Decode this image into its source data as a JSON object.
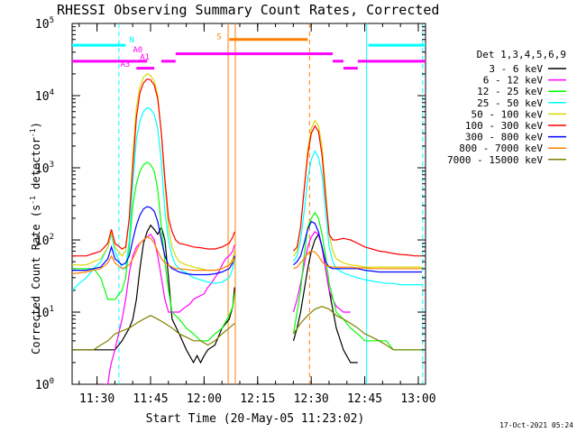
{
  "chart_data": {
    "type": "line",
    "title": "RHESSI Observing Summary Count Rates, Corrected",
    "xlabel": "Start Time (20-May-05 11:23:02)",
    "ylabel_parts": {
      "pre": "Corrected Count Rate (s",
      "sup1": "-1",
      "mid": " detector",
      "sup2": "-1",
      "post": ")"
    },
    "x_unit": "minutes since 11:23:02",
    "xlim": [
      0,
      99
    ],
    "ylim": [
      1,
      100000
    ],
    "yscale": "log",
    "x_ticks": [
      {
        "x": 6.97,
        "label": "11:30"
      },
      {
        "x": 21.97,
        "label": "11:45"
      },
      {
        "x": 36.97,
        "label": "12:00"
      },
      {
        "x": 51.97,
        "label": "12:15"
      },
      {
        "x": 66.97,
        "label": "12:30"
      },
      {
        "x": 81.97,
        "label": "12:45"
      },
      {
        "x": 96.97,
        "label": "13:00"
      }
    ],
    "y_ticks": [
      {
        "v": 1,
        "base": "10",
        "exp": "0"
      },
      {
        "v": 10,
        "base": "10",
        "exp": "1"
      },
      {
        "v": 100,
        "base": "10",
        "exp": "2"
      },
      {
        "v": 1000,
        "base": "10",
        "exp": "3"
      },
      {
        "v": 10000,
        "base": "10",
        "exp": "4"
      },
      {
        "v": 100000,
        "base": "10",
        "exp": "5"
      }
    ],
    "legend_title": "Det 1,3,4,5,6,9",
    "legend_position": "right",
    "series": [
      {
        "name": "3 - 6 keV",
        "color": "#000000",
        "x": [
          0,
          8,
          12,
          14,
          16,
          17,
          18,
          19,
          20,
          21,
          22,
          23,
          24,
          25,
          26,
          27,
          28,
          30,
          32,
          34,
          35,
          36,
          37,
          38,
          40,
          42,
          44,
          45,
          45.5
        ],
        "y": [
          3,
          3,
          3,
          4,
          6,
          8,
          15,
          40,
          90,
          130,
          160,
          140,
          120,
          150,
          100,
          30,
          8,
          5,
          3,
          2,
          2.5,
          2,
          2.5,
          3,
          3.5,
          6,
          8,
          12,
          22
        ]
      },
      {
        "name": "3 - 6 keV",
        "color": "#000000",
        "x": [
          62,
          63,
          64,
          65,
          66,
          67,
          68,
          69,
          70,
          71,
          72,
          74,
          76,
          78,
          80
        ],
        "y": [
          4,
          6,
          10,
          20,
          40,
          70,
          100,
          120,
          80,
          40,
          20,
          6,
          3,
          2,
          2
        ]
      },
      {
        "name": "6 - 12 keV",
        "color": "#ff00ff",
        "x": [
          9,
          10,
          10.5,
          11,
          12,
          13,
          14,
          15,
          16,
          17,
          18,
          19,
          20,
          21,
          22,
          23,
          24,
          25,
          26,
          27,
          28,
          29,
          30,
          31,
          32,
          33,
          34,
          35,
          36,
          37,
          38,
          39,
          40,
          41,
          42,
          43,
          44,
          45,
          45.5
        ],
        "y": [
          1,
          1,
          1.5,
          2,
          3,
          5,
          8,
          15,
          35,
          60,
          80,
          90,
          100,
          110,
          120,
          100,
          60,
          30,
          15,
          10,
          10,
          10,
          10,
          11,
          12,
          13,
          15,
          16,
          17,
          18,
          22,
          25,
          30,
          35,
          45,
          55,
          60,
          70,
          85
        ]
      },
      {
        "name": "6 - 12 keV",
        "color": "#ff00ff",
        "x": [
          62,
          63,
          64,
          65,
          66,
          67,
          68,
          69,
          70,
          71,
          72,
          73,
          74,
          75,
          76,
          77,
          78
        ],
        "y": [
          10,
          15,
          25,
          45,
          80,
          110,
          130,
          120,
          80,
          40,
          20,
          15,
          12,
          11,
          10,
          10,
          10
        ]
      },
      {
        "name": "12 - 25 keV",
        "color": "#00ff00",
        "x": [
          0,
          4,
          6,
          8,
          10,
          12,
          14,
          15,
          16,
          17,
          18,
          19,
          20,
          21,
          22,
          23,
          24,
          25,
          26,
          27,
          28,
          30,
          32,
          34,
          36,
          38,
          40,
          42,
          44,
          45,
          45.5
        ],
        "y": [
          40,
          40,
          40,
          30,
          15,
          15,
          20,
          30,
          80,
          300,
          600,
          900,
          1100,
          1200,
          1100,
          900,
          500,
          150,
          50,
          20,
          10,
          8,
          6,
          5,
          4,
          4,
          5,
          6,
          9,
          12,
          18
        ]
      },
      {
        "name": "12 - 25 keV",
        "color": "#00ff00",
        "x": [
          62,
          63,
          64,
          65,
          66,
          67,
          68,
          69,
          70,
          71,
          72,
          74,
          76,
          78,
          80,
          82,
          84,
          86,
          88,
          90,
          92,
          94,
          96,
          98
        ],
        "y": [
          5,
          10,
          20,
          60,
          150,
          200,
          240,
          200,
          120,
          60,
          25,
          10,
          8,
          6,
          5,
          4,
          4,
          4,
          4,
          3,
          3,
          3,
          3,
          3
        ]
      },
      {
        "name": "25 - 50 keV",
        "color": "#00ffff",
        "x": [
          0,
          2,
          4,
          6,
          8,
          10,
          11,
          12,
          14,
          15,
          16,
          17,
          18,
          19,
          20,
          21,
          22,
          23,
          24,
          25,
          26,
          27,
          28,
          29,
          30,
          32,
          34,
          36,
          38,
          40,
          42,
          44,
          45,
          45.5
        ],
        "y": [
          20,
          25,
          30,
          40,
          50,
          80,
          120,
          70,
          40,
          40,
          100,
          600,
          2500,
          4500,
          6000,
          6800,
          6500,
          5500,
          3500,
          1200,
          250,
          100,
          60,
          45,
          40,
          35,
          30,
          28,
          26,
          25,
          26,
          30,
          40,
          55
        ]
      },
      {
        "name": "25 - 50 keV",
        "color": "#00ffff",
        "x": [
          62,
          63,
          64,
          65,
          66,
          67,
          68,
          69,
          70,
          71,
          72,
          73,
          74,
          76,
          78,
          80,
          82,
          84,
          86,
          88,
          90,
          92,
          94,
          96,
          98
        ],
        "y": [
          50,
          60,
          100,
          250,
          700,
          1300,
          1700,
          1400,
          800,
          250,
          80,
          50,
          40,
          35,
          32,
          30,
          28,
          27,
          26,
          25,
          25,
          24,
          24,
          24,
          24
        ]
      },
      {
        "name": "50 - 100 keV",
        "color": "#d8d800",
        "x": [
          0,
          4,
          6,
          8,
          10,
          11,
          12,
          14,
          15,
          16,
          17,
          18,
          19,
          20,
          21,
          22,
          23,
          24,
          25,
          26,
          27,
          28,
          29,
          30,
          32,
          34,
          36,
          38,
          40,
          42,
          44,
          45,
          45.5
        ],
        "y": [
          45,
          45,
          50,
          55,
          80,
          130,
          80,
          60,
          70,
          200,
          1500,
          7000,
          13000,
          18000,
          20000,
          19000,
          16000,
          10000,
          3000,
          600,
          150,
          80,
          60,
          50,
          45,
          42,
          40,
          38,
          38,
          40,
          45,
          55,
          70
        ]
      },
      {
        "name": "50 - 100 keV",
        "color": "#d8d800",
        "x": [
          62,
          63,
          64,
          65,
          66,
          67,
          68,
          69,
          70,
          71,
          72,
          73,
          74,
          76,
          78,
          80,
          82,
          84,
          86,
          88,
          90,
          92,
          94,
          96,
          98
        ],
        "y": [
          60,
          70,
          150,
          500,
          1800,
          3500,
          4500,
          3800,
          2000,
          500,
          120,
          70,
          55,
          48,
          45,
          44,
          42,
          42,
          42,
          42,
          42,
          42,
          42,
          42,
          42
        ]
      },
      {
        "name": "100 - 300 keV",
        "color": "#ff0000",
        "x": [
          0,
          4,
          6,
          8,
          10,
          11,
          12,
          14,
          15,
          16,
          17,
          18,
          19,
          20,
          21,
          22,
          23,
          24,
          25,
          26,
          27,
          28,
          29,
          30,
          32,
          34,
          36,
          38,
          40,
          42,
          44,
          45,
          45.5
        ],
        "y": [
          60,
          60,
          65,
          70,
          90,
          140,
          90,
          75,
          80,
          200,
          1000,
          5000,
          11000,
          15000,
          17000,
          16500,
          14000,
          9000,
          3000,
          700,
          200,
          130,
          100,
          90,
          85,
          80,
          78,
          75,
          75,
          80,
          90,
          110,
          130
        ]
      },
      {
        "name": "100 - 300 keV",
        "color": "#ff0000",
        "x": [
          62,
          63,
          64,
          65,
          66,
          67,
          68,
          69,
          70,
          71,
          72,
          73,
          74,
          76,
          78,
          80,
          82,
          84,
          86,
          88,
          90,
          92,
          94,
          96,
          98
        ],
        "y": [
          70,
          80,
          150,
          500,
          1500,
          3000,
          3800,
          3200,
          1500,
          400,
          120,
          100,
          100,
          105,
          100,
          90,
          80,
          75,
          70,
          68,
          65,
          63,
          62,
          60,
          60
        ]
      },
      {
        "name": "300 - 800 keV",
        "color": "#0000ff",
        "x": [
          0,
          4,
          6,
          8,
          10,
          11,
          12,
          14,
          15,
          16,
          17,
          18,
          19,
          20,
          21,
          22,
          23,
          24,
          25,
          26,
          27,
          28,
          29,
          30,
          32,
          34,
          36,
          38,
          40,
          42,
          44,
          45,
          45.5
        ],
        "y": [
          38,
          38,
          40,
          42,
          55,
          80,
          55,
          45,
          48,
          60,
          100,
          160,
          220,
          270,
          290,
          280,
          250,
          180,
          100,
          60,
          45,
          40,
          38,
          36,
          34,
          33,
          33,
          33,
          34,
          36,
          40,
          48,
          60
        ]
      },
      {
        "name": "300 - 800 keV",
        "color": "#0000ff",
        "x": [
          62,
          63,
          64,
          65,
          66,
          67,
          68,
          69,
          70,
          71,
          72,
          73,
          74,
          76,
          78,
          80,
          82,
          84,
          86,
          88,
          90,
          92,
          94,
          96,
          98
        ],
        "y": [
          45,
          50,
          60,
          90,
          140,
          180,
          170,
          130,
          80,
          50,
          42,
          40,
          40,
          40,
          40,
          40,
          38,
          37,
          36,
          36,
          36,
          36,
          36,
          36,
          36
        ]
      },
      {
        "name": "800 - 7000 keV",
        "color": "#ff8000",
        "x": [
          0,
          4,
          6,
          8,
          10,
          11,
          12,
          14,
          15,
          16,
          17,
          18,
          19,
          20,
          21,
          22,
          23,
          24,
          25,
          26,
          27,
          28,
          29,
          30,
          32,
          34,
          36,
          38,
          40,
          42,
          44,
          45,
          45.5
        ],
        "y": [
          34,
          36,
          38,
          40,
          48,
          60,
          48,
          40,
          42,
          45,
          55,
          70,
          90,
          100,
          110,
          105,
          90,
          70,
          55,
          48,
          45,
          42,
          40,
          40,
          39,
          38,
          38,
          38,
          38,
          40,
          45,
          50,
          55
        ]
      },
      {
        "name": "800 - 7000 keV",
        "color": "#ff8000",
        "x": [
          62,
          63,
          64,
          65,
          66,
          67,
          68,
          69,
          70,
          71,
          72,
          73,
          74,
          76,
          78,
          80,
          82,
          84,
          86,
          88,
          90,
          92,
          94,
          96,
          98
        ],
        "y": [
          40,
          42,
          48,
          55,
          65,
          70,
          68,
          60,
          50,
          45,
          43,
          42,
          42,
          42,
          42,
          41,
          41,
          40,
          40,
          40,
          40,
          40,
          40,
          40,
          40
        ]
      },
      {
        "name": "7000 - 15000 keV",
        "color": "#808000",
        "x": [
          0,
          4,
          6,
          8,
          10,
          12,
          14,
          16,
          18,
          20,
          22,
          24,
          26,
          28,
          30,
          32,
          34,
          36,
          38,
          40,
          42,
          44,
          45.5
        ],
        "y": [
          3,
          3,
          3,
          3.5,
          4,
          5,
          5.5,
          6,
          7,
          8,
          9,
          8,
          7,
          6,
          5,
          4.5,
          4,
          4,
          3.5,
          4,
          5,
          6,
          7
        ]
      },
      {
        "name": "7000 - 15000 keV",
        "color": "#808000",
        "x": [
          62,
          64,
          66,
          68,
          70,
          72,
          74,
          76,
          78,
          80,
          82,
          84,
          86,
          88,
          90,
          92,
          94,
          96,
          98
        ],
        "y": [
          5,
          7,
          9,
          11,
          12,
          11,
          9,
          8,
          7,
          6,
          5,
          4.5,
          4,
          3.5,
          3,
          3,
          3,
          3,
          3
        ]
      }
    ],
    "state_bars": [
      {
        "label": "N",
        "color": "#00ffff",
        "value": 50000,
        "segments": [
          [
            0,
            15
          ],
          [
            83,
            99
          ]
        ]
      },
      {
        "label": "S",
        "color": "#ff8000",
        "value": 60000,
        "segments": [
          [
            44,
            66
          ]
        ]
      },
      {
        "label": "A0",
        "color": "#ff00ff",
        "value": 38000,
        "segments": [
          [
            29,
            73
          ]
        ]
      },
      {
        "label": "A1",
        "color": "#ff00ff",
        "value": 30000,
        "segments": [
          [
            0,
            18
          ],
          [
            18,
            21
          ],
          [
            25,
            29
          ],
          [
            73,
            76
          ],
          [
            80,
            99
          ]
        ]
      },
      {
        "label": "A3",
        "color": "#ff00ff",
        "value": 24000,
        "segments": [
          [
            18,
            23
          ],
          [
            76,
            80
          ]
        ]
      }
    ],
    "state_labels": [
      {
        "text": "N",
        "color": "#00ffff",
        "x": 16,
        "value": 55000
      },
      {
        "text": "S",
        "color": "#ff8000",
        "x": 40.5,
        "value": 60000
      },
      {
        "text": "A0",
        "color": "#ff00ff",
        "x": 17,
        "value": 40000
      },
      {
        "text": "A1",
        "color": "#ff00ff",
        "x": 19,
        "value": 31500
      },
      {
        "text": "A3",
        "color": "#ff00ff",
        "x": 13.5,
        "value": 25000
      }
    ],
    "vertical_lines": [
      {
        "x": 13.1,
        "color": "#00ffff",
        "dashed": true
      },
      {
        "x": 82.5,
        "color": "#00ffff",
        "dashed": false
      },
      {
        "x": 98.2,
        "color": "#00ffff",
        "dashed": true
      },
      {
        "x": 43.7,
        "color": "#ff8000",
        "dashed": false
      },
      {
        "x": 45.7,
        "color": "#ff8000",
        "dashed": false
      },
      {
        "x": 66.5,
        "color": "#ff8000",
        "dashed": true
      }
    ],
    "footer_date": "17-Oct-2021 05:24"
  }
}
